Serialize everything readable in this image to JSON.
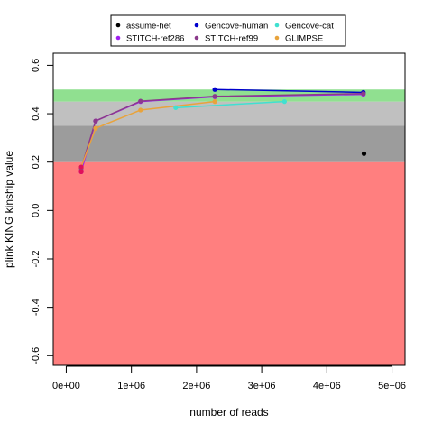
{
  "chart_data": {
    "type": "line",
    "title": "",
    "xlabel": "number of reads",
    "ylabel": "plink KING kinship value",
    "xlim": [
      -200000,
      5200000
    ],
    "ylim": [
      -0.64,
      0.65
    ],
    "x_ticks": [
      0,
      1000000,
      2000000,
      3000000,
      4000000,
      5000000
    ],
    "x_tick_labels": [
      "0e+00",
      "1e+06",
      "2e+06",
      "3e+06",
      "4e+06",
      "5e+06"
    ],
    "y_ticks": [
      -0.6,
      -0.4,
      -0.2,
      0.0,
      0.2,
      0.4,
      0.6
    ],
    "y_tick_labels": [
      "-0.6",
      "-0.4",
      "-0.2",
      "0.0",
      "0.2",
      "0.4",
      "0.6"
    ],
    "bands": [
      {
        "from": -0.64,
        "to": 0.2,
        "color": "#ff7f7f"
      },
      {
        "from": 0.2,
        "to": 0.35,
        "color": "#9c9c9c"
      },
      {
        "from": 0.35,
        "to": 0.45,
        "color": "#c0c0c0"
      },
      {
        "from": 0.45,
        "to": 0.5,
        "color": "#90e090"
      }
    ],
    "legend_position": "top",
    "series": [
      {
        "name": "assume-het",
        "color": "#000000",
        "line": false,
        "points": [
          {
            "x": 4570000,
            "y": 0.235
          }
        ]
      },
      {
        "name": "Gencove-human",
        "color": "#0000cd",
        "line": true,
        "points": [
          {
            "x": 2280000,
            "y": 0.5
          },
          {
            "x": 4560000,
            "y": 0.488
          }
        ]
      },
      {
        "name": "Gencove-cat",
        "color": "#40e0d0",
        "line": true,
        "points": [
          {
            "x": 1680000,
            "y": 0.425
          },
          {
            "x": 3350000,
            "y": 0.45
          }
        ]
      },
      {
        "name": "STITCH-ref286",
        "color": "#a020f0",
        "line": true,
        "points": [
          {
            "x": 230000,
            "y": 0.16
          },
          {
            "x": 450000,
            "y": 0.37
          },
          {
            "x": 1140000,
            "y": 0.45
          },
          {
            "x": 2280000,
            "y": 0.47
          },
          {
            "x": 4560000,
            "y": 0.48
          }
        ]
      },
      {
        "name": "STITCH-ref99",
        "color": "#8b3a8b",
        "line": true,
        "points": [
          {
            "x": 230000,
            "y": 0.175
          },
          {
            "x": 450000,
            "y": 0.37
          },
          {
            "x": 1140000,
            "y": 0.452
          },
          {
            "x": 2280000,
            "y": 0.472
          },
          {
            "x": 4560000,
            "y": 0.483
          }
        ]
      },
      {
        "name": "GLIMPSE",
        "color": "#e8a33c",
        "line": true,
        "points": [
          {
            "x": 230000,
            "y": 0.18
          },
          {
            "x": 450000,
            "y": 0.34
          },
          {
            "x": 1140000,
            "y": 0.415
          },
          {
            "x": 2280000,
            "y": 0.45
          }
        ]
      }
    ],
    "extra_points": [
      {
        "x": 230000,
        "y": 0.16,
        "color": "#e0105a"
      },
      {
        "x": 230000,
        "y": 0.18,
        "color": "#e0105a"
      }
    ]
  }
}
